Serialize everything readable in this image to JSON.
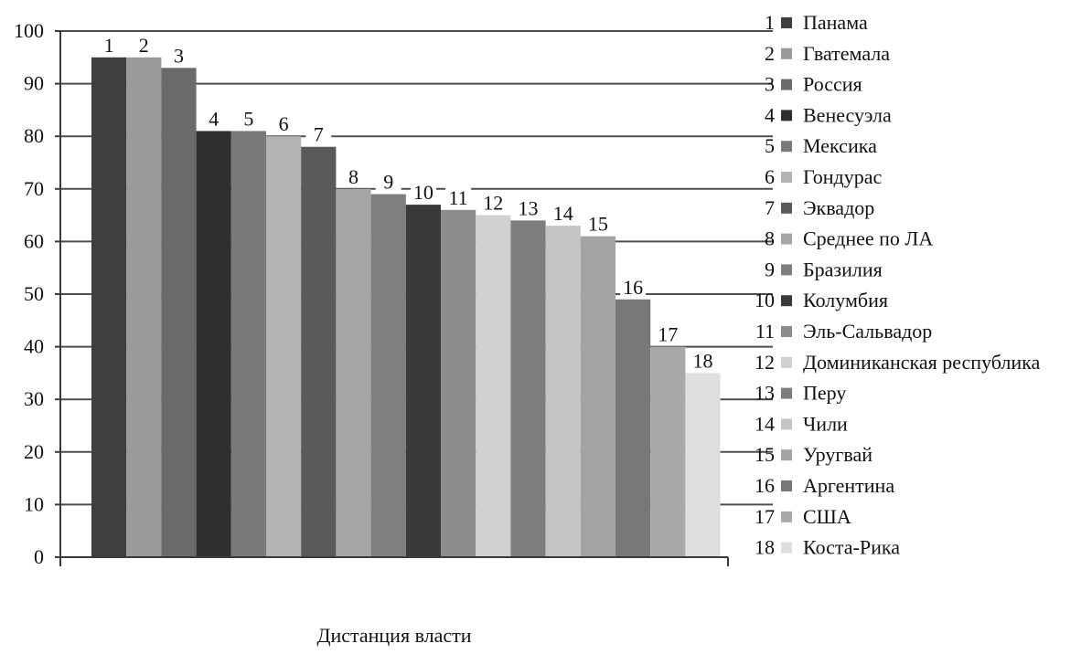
{
  "chart_data": {
    "type": "bar",
    "xlabel": "Дистанция власти",
    "ylabel": "",
    "ylim": [
      0,
      100
    ],
    "yticks": [
      0,
      10,
      20,
      30,
      40,
      50,
      60,
      70,
      80,
      90,
      100
    ],
    "grid": true,
    "legend_position": "right",
    "categories": [
      "1",
      "2",
      "3",
      "4",
      "5",
      "6",
      "7",
      "8",
      "9",
      "10",
      "11",
      "12",
      "13",
      "14",
      "15",
      "16",
      "17",
      "18"
    ],
    "series": [
      {
        "name": "Панама",
        "value": 95,
        "color": "#3f3f3f"
      },
      {
        "name": "Гватемала",
        "value": 95,
        "color": "#9a9a9a"
      },
      {
        "name": "Россия",
        "value": 93,
        "color": "#6b6b6b"
      },
      {
        "name": "Венесуэла",
        "value": 81,
        "color": "#2f2f2f"
      },
      {
        "name": "Мексика",
        "value": 81,
        "color": "#7a7a7a"
      },
      {
        "name": "Гондурас",
        "value": 80,
        "color": "#b3b3b3"
      },
      {
        "name": "Эквадор",
        "value": 78,
        "color": "#5a5a5a"
      },
      {
        "name": "Среднее по ЛА",
        "value": 70,
        "color": "#a6a6a6"
      },
      {
        "name": "Бразилия",
        "value": 69,
        "color": "#7f7f7f"
      },
      {
        "name": "Колумбия",
        "value": 67,
        "color": "#3a3a3a"
      },
      {
        "name": "Эль-Сальвадор",
        "value": 66,
        "color": "#8c8c8c"
      },
      {
        "name": "Доминиканская республика",
        "value": 65,
        "color": "#d0d0d0"
      },
      {
        "name": "Перу",
        "value": 64,
        "color": "#7d7d7d"
      },
      {
        "name": "Чили",
        "value": 63,
        "color": "#c4c4c4"
      },
      {
        "name": "Уругвай",
        "value": 61,
        "color": "#a3a3a3"
      },
      {
        "name": "Аргентина",
        "value": 49,
        "color": "#787878"
      },
      {
        "name": "США",
        "value": 40,
        "color": "#a9a9a9"
      },
      {
        "name": "Коста-Рика",
        "value": 35,
        "color": "#dedede"
      }
    ]
  }
}
